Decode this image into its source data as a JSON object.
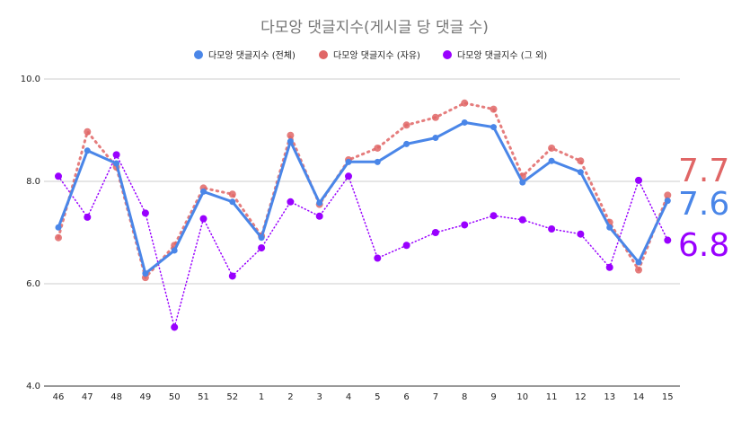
{
  "chart_data": {
    "type": "line",
    "title": "다모앙 댓글지수(게시글 당 댓글 수)",
    "x": [
      "46",
      "47",
      "48",
      "49",
      "50",
      "51",
      "52",
      "1",
      "2",
      "3",
      "4",
      "5",
      "6",
      "7",
      "8",
      "9",
      "10",
      "11",
      "12",
      "13",
      "14",
      "15"
    ],
    "ylim": [
      4.0,
      10.0
    ],
    "yticks": [
      "4.0",
      "6.0",
      "8.0",
      "10.0"
    ],
    "grid": true,
    "legend_position": "top",
    "series": [
      {
        "name": "다모앙 댓글지수 (전체)",
        "color": "#4a86e8",
        "style": "solid",
        "values": [
          7.1,
          8.6,
          8.35,
          6.2,
          6.65,
          7.8,
          7.6,
          6.9,
          8.78,
          7.58,
          8.38,
          8.38,
          8.73,
          8.85,
          9.15,
          9.06,
          7.98,
          8.4,
          8.18,
          7.1,
          6.42,
          7.62
        ]
      },
      {
        "name": "다모앙 댓글지수 (자유)",
        "color": "#e06666",
        "style": "dotted",
        "values": [
          6.9,
          8.97,
          8.28,
          6.12,
          6.75,
          7.87,
          7.75,
          6.93,
          8.9,
          7.55,
          8.42,
          8.65,
          9.1,
          9.25,
          9.53,
          9.41,
          8.1,
          8.65,
          8.4,
          7.2,
          6.27,
          7.73
        ]
      },
      {
        "name": "다모앙 댓글지수 (그 외)",
        "color": "#9900ff",
        "style": "dotted",
        "values": [
          8.1,
          7.3,
          8.52,
          7.38,
          5.15,
          7.27,
          6.15,
          6.7,
          7.6,
          7.32,
          8.1,
          6.5,
          6.75,
          7.0,
          7.15,
          7.33,
          7.25,
          7.07,
          6.97,
          6.32,
          8.02,
          6.85
        ]
      }
    ],
    "end_labels": [
      {
        "text": "7.7",
        "color": "#e06666"
      },
      {
        "text": "7.6",
        "color": "#4a86e8"
      },
      {
        "text": "6.8",
        "color": "#9900ff"
      }
    ]
  }
}
